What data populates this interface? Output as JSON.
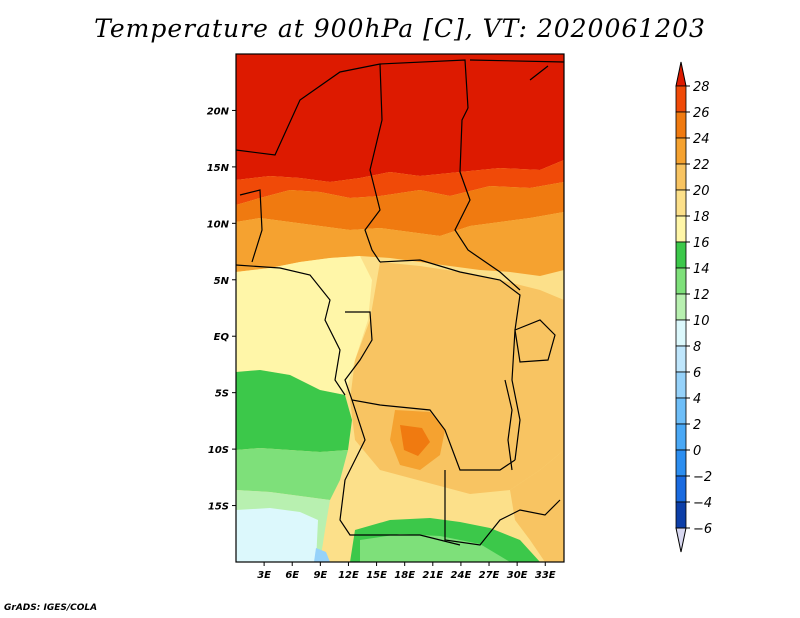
{
  "title": "Temperature at 900hPa [C], VT: 2020061203",
  "credit": "GrADS: IGES/COLA",
  "map": {
    "lon_range": [
      0,
      35
    ],
    "lat_range": [
      -20,
      25
    ],
    "lon_ticks": [
      {
        "lon": 3,
        "label": "3E"
      },
      {
        "lon": 6,
        "label": "6E"
      },
      {
        "lon": 9,
        "label": "9E"
      },
      {
        "lon": 12,
        "label": "12E"
      },
      {
        "lon": 15,
        "label": "15E"
      },
      {
        "lon": 18,
        "label": "18E"
      },
      {
        "lon": 21,
        "label": "21E"
      },
      {
        "lon": 24,
        "label": "24E"
      },
      {
        "lon": 27,
        "label": "27E"
      },
      {
        "lon": 30,
        "label": "30E"
      },
      {
        "lon": 33,
        "label": "33E"
      }
    ],
    "lat_ticks": [
      {
        "lat": 20,
        "label": "20N"
      },
      {
        "lat": 15,
        "label": "15N"
      },
      {
        "lat": 10,
        "label": "10N"
      },
      {
        "lat": 5,
        "label": "5N"
      },
      {
        "lat": 0,
        "label": "EQ"
      },
      {
        "lat": -5,
        "label": "5S"
      },
      {
        "lat": -10,
        "label": "10S"
      },
      {
        "lat": -15,
        "label": "15S"
      }
    ]
  },
  "colorbar": {
    "levels": [
      "-6",
      "-4",
      "-2",
      "0",
      "2",
      "4",
      "6",
      "8",
      "10",
      "12",
      "14",
      "16",
      "18",
      "20",
      "22",
      "24",
      "26",
      "28"
    ],
    "colors": [
      "#08086b",
      "#0d3fa8",
      "#1a6be0",
      "#2c8ef0",
      "#4aa8f5",
      "#6ebef8",
      "#96d2fa",
      "#bfe6fc",
      "#dcf8fc",
      "#b8f0b0",
      "#7ee07a",
      "#3cc84a",
      "#fff6a8",
      "#fce08a",
      "#f8c462",
      "#f5a230",
      "#f07a10",
      "#f04a08",
      "#dd1a00"
    ],
    "under_color": "#d8d8f0",
    "over_color": "#dd1a00"
  }
}
